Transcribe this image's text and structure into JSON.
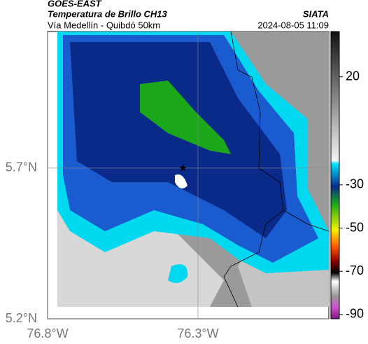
{
  "header": {
    "satellite": "GOES-EAST",
    "product": "Temperatura de Brillo CH13",
    "location": "Vía Medellín - Quibdó 50km",
    "source": "SIATA",
    "datetime": "2024-08-05 11:09"
  },
  "map": {
    "xlim": [
      -76.8,
      -75.865
    ],
    "ylim": [
      5.2,
      6.153
    ],
    "xticks": [
      {
        "value": -76.8,
        "label": "76.8°W"
      },
      {
        "value": -76.3,
        "label": "76.3°W"
      }
    ],
    "yticks": [
      {
        "value": 5.7,
        "label": "5.7°N"
      },
      {
        "value": 5.2,
        "label": "5.2°N"
      }
    ],
    "marker": {
      "lon": -76.35,
      "lat": 5.7
    }
  },
  "colorbar": {
    "lim": [
      -92,
      41
    ],
    "ticks": [
      20,
      -30,
      -50,
      -70,
      -90
    ]
  }
}
